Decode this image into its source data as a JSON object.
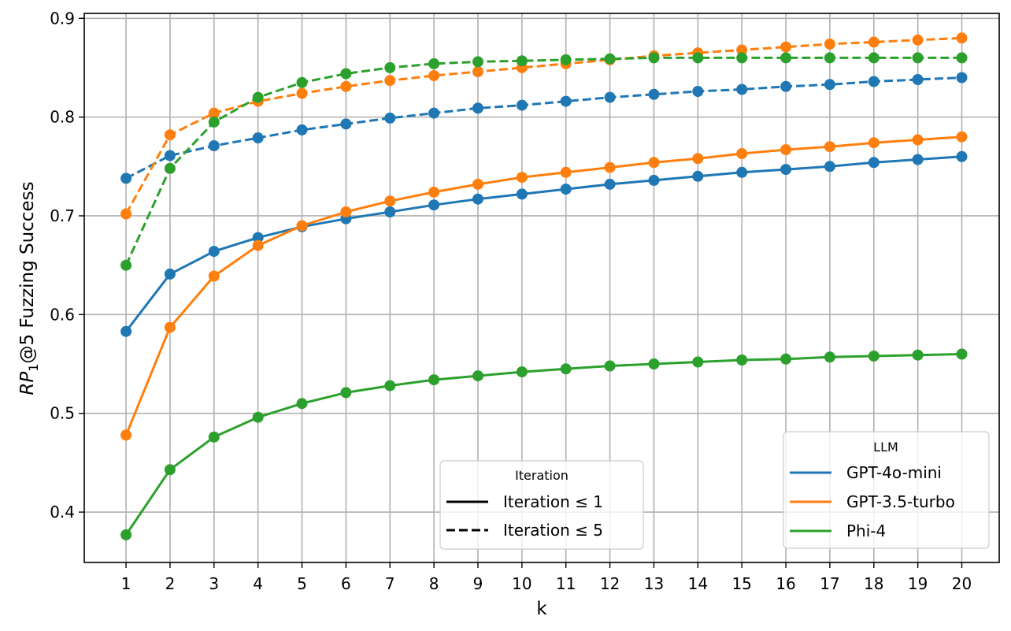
{
  "chart_data": {
    "type": "line",
    "title": "",
    "xlabel": "k",
    "ylabel": "RP1@5 Fuzzing Success",
    "ylabel_parts": {
      "italic": "RP",
      "sub": "1",
      "rest": "@5 Fuzzing Success"
    },
    "x": [
      1,
      2,
      3,
      4,
      5,
      6,
      7,
      8,
      9,
      10,
      11,
      12,
      13,
      14,
      15,
      16,
      17,
      18,
      19,
      20
    ],
    "xticks": [
      "1",
      "2",
      "3",
      "4",
      "5",
      "6",
      "7",
      "8",
      "9",
      "10",
      "11",
      "12",
      "13",
      "14",
      "15",
      "16",
      "17",
      "18",
      "19",
      "20"
    ],
    "yticks": [
      "0.4",
      "0.5",
      "0.6",
      "0.7",
      "0.8",
      "0.9"
    ],
    "ytick_values": [
      0.4,
      0.5,
      0.6,
      0.7,
      0.8,
      0.9
    ],
    "ylim": [
      0.349,
      0.905
    ],
    "xlim": [
      0.05,
      20.85
    ],
    "grid": true,
    "series": [
      {
        "name": "GPT-4o-mini",
        "iteration": "Iteration ≤ 1",
        "color": "#1f77b4",
        "dash": false,
        "values": [
          0.583,
          0.641,
          0.664,
          0.678,
          0.689,
          0.697,
          0.704,
          0.711,
          0.717,
          0.722,
          0.727,
          0.732,
          0.736,
          0.74,
          0.744,
          0.747,
          0.75,
          0.754,
          0.757,
          0.76
        ]
      },
      {
        "name": "GPT-3.5-turbo",
        "iteration": "Iteration ≤ 1",
        "color": "#ff7f0e",
        "dash": false,
        "values": [
          0.478,
          0.587,
          0.639,
          0.67,
          0.69,
          0.704,
          0.715,
          0.724,
          0.732,
          0.739,
          0.744,
          0.749,
          0.754,
          0.758,
          0.763,
          0.767,
          0.77,
          0.774,
          0.777,
          0.78
        ]
      },
      {
        "name": "Phi-4",
        "iteration": "Iteration ≤ 1",
        "color": "#2ca02c",
        "dash": false,
        "values": [
          0.377,
          0.443,
          0.476,
          0.496,
          0.51,
          0.521,
          0.528,
          0.534,
          0.538,
          0.542,
          0.545,
          0.548,
          0.55,
          0.552,
          0.554,
          0.555,
          0.557,
          0.558,
          0.559,
          0.56
        ]
      },
      {
        "name": "GPT-4o-mini",
        "iteration": "Iteration ≤ 5",
        "color": "#1f77b4",
        "dash": true,
        "values": [
          0.738,
          0.761,
          0.771,
          0.779,
          0.787,
          0.793,
          0.799,
          0.804,
          0.809,
          0.812,
          0.816,
          0.82,
          0.823,
          0.826,
          0.828,
          0.831,
          0.833,
          0.836,
          0.838,
          0.84
        ]
      },
      {
        "name": "GPT-3.5-turbo",
        "iteration": "Iteration ≤ 5",
        "color": "#ff7f0e",
        "dash": true,
        "values": [
          0.702,
          0.782,
          0.804,
          0.816,
          0.824,
          0.831,
          0.837,
          0.842,
          0.846,
          0.85,
          0.854,
          0.858,
          0.862,
          0.865,
          0.868,
          0.871,
          0.874,
          0.876,
          0.878,
          0.88
        ]
      },
      {
        "name": "Phi-4",
        "iteration": "Iteration ≤ 5",
        "color": "#2ca02c",
        "dash": true,
        "values": [
          0.65,
          0.748,
          0.795,
          0.82,
          0.835,
          0.844,
          0.85,
          0.854,
          0.856,
          0.857,
          0.858,
          0.859,
          0.86,
          0.86,
          0.86,
          0.86,
          0.86,
          0.86,
          0.86,
          0.86
        ]
      }
    ],
    "legends": [
      {
        "title": "Iteration",
        "position": "lower center",
        "entries": [
          {
            "label": "Iteration ≤ 1",
            "style": "solid",
            "color": "#000000"
          },
          {
            "label": "Iteration ≤ 5",
            "style": "dashed",
            "color": "#000000"
          }
        ]
      },
      {
        "title": "LLM",
        "position": "lower right",
        "entries": [
          {
            "label": "GPT-4o-mini",
            "color": "#1f77b4"
          },
          {
            "label": "GPT-3.5-turbo",
            "color": "#ff7f0e"
          },
          {
            "label": "Phi-4",
            "color": "#2ca02c"
          }
        ]
      }
    ]
  }
}
